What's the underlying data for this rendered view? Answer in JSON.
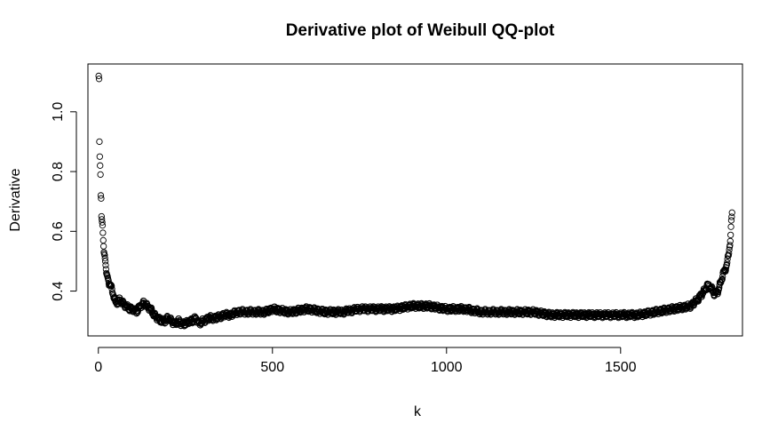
{
  "chart_data": {
    "type": "scatter",
    "title": "Derivative plot of Weibull QQ-plot",
    "xlabel": "k",
    "ylabel": "Derivative",
    "xlim": [
      -30,
      1850
    ],
    "ylim": [
      0.25,
      1.16
    ],
    "x_ticks": [
      0,
      500,
      1000,
      1500
    ],
    "y_ticks": [
      0.4,
      0.6,
      0.8,
      1.0
    ],
    "x_tick_labels": [
      "0",
      "500",
      "1000",
      "1500"
    ],
    "y_tick_labels": [
      "0.4",
      "0.6",
      "0.8",
      "1.0"
    ],
    "grid": false,
    "legend": "none",
    "marker": "open-circle",
    "point_color": "#000000",
    "n_points": 1820,
    "series": [
      {
        "x": [
          1,
          2,
          3,
          4,
          5,
          6,
          7,
          8,
          9,
          10,
          12,
          14,
          16,
          18,
          20,
          23,
          26,
          30,
          35,
          40,
          45,
          50,
          60,
          70,
          80,
          90,
          100,
          110,
          120,
          130,
          140,
          150,
          160,
          170,
          180,
          190,
          200,
          210,
          220,
          230,
          240,
          250,
          260,
          270,
          280,
          290,
          300,
          320,
          340,
          360,
          380,
          400,
          420,
          440,
          460,
          480,
          500,
          550,
          600,
          650,
          700,
          750,
          800,
          850,
          900,
          950,
          1000,
          1050,
          1100,
          1150,
          1200,
          1250,
          1300,
          1350,
          1400,
          1450,
          1500,
          1550,
          1600,
          1650,
          1700,
          1720,
          1740,
          1750,
          1760,
          1770,
          1780,
          1790,
          1795,
          1800,
          1805,
          1810,
          1812,
          1814,
          1816,
          1818,
          1820
        ],
        "y": [
          1.12,
          1.11,
          0.9,
          0.85,
          0.82,
          0.79,
          0.72,
          0.71,
          0.65,
          0.64,
          0.62,
          0.57,
          0.53,
          0.52,
          0.5,
          0.46,
          0.45,
          0.43,
          0.42,
          0.4,
          0.38,
          0.36,
          0.37,
          0.36,
          0.35,
          0.34,
          0.34,
          0.33,
          0.35,
          0.36,
          0.35,
          0.34,
          0.32,
          0.31,
          0.3,
          0.3,
          0.31,
          0.3,
          0.29,
          0.3,
          0.29,
          0.29,
          0.3,
          0.3,
          0.31,
          0.29,
          0.3,
          0.31,
          0.31,
          0.32,
          0.32,
          0.33,
          0.33,
          0.33,
          0.33,
          0.33,
          0.34,
          0.33,
          0.34,
          0.33,
          0.33,
          0.34,
          0.34,
          0.34,
          0.35,
          0.35,
          0.34,
          0.34,
          0.33,
          0.33,
          0.33,
          0.33,
          0.32,
          0.32,
          0.32,
          0.32,
          0.32,
          0.32,
          0.33,
          0.34,
          0.35,
          0.37,
          0.4,
          0.42,
          0.41,
          0.39,
          0.4,
          0.44,
          0.46,
          0.47,
          0.49,
          0.52,
          0.54,
          0.56,
          0.59,
          0.63,
          0.66
        ]
      }
    ]
  }
}
